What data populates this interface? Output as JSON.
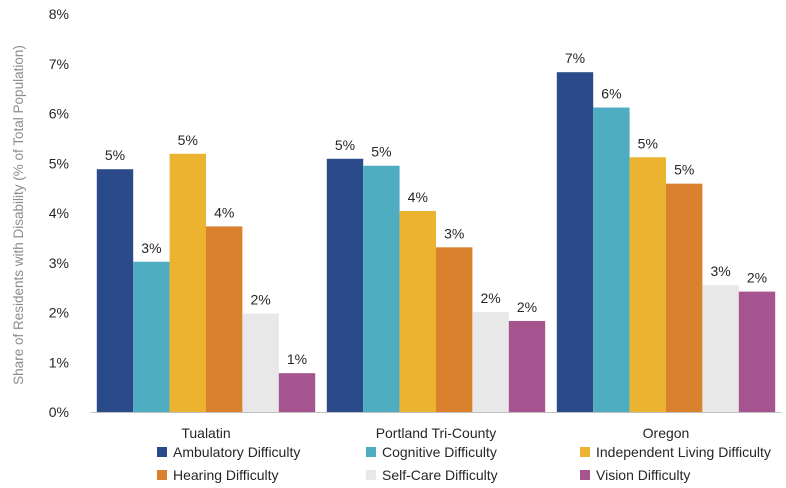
{
  "chart_data": {
    "type": "bar",
    "ylabel": "Share of Residents with Disability (% of Total Population)",
    "ylim": [
      0,
      8
    ],
    "yticks": [
      "0%",
      "1%",
      "2%",
      "3%",
      "4%",
      "5%",
      "6%",
      "7%",
      "8%"
    ],
    "categories": [
      "Tualatin",
      "Portland Tri-County",
      "Oregon"
    ],
    "grid": false,
    "legend_position": "bottom",
    "series": [
      {
        "name": "Ambulatory Difficulty",
        "color": "#2b4a89",
        "values": [
          4.88,
          5.09,
          6.83
        ],
        "labels": [
          "5%",
          "5%",
          "7%"
        ]
      },
      {
        "name": "Cognitive Difficulty",
        "color": "#4fadc1",
        "values": [
          3.02,
          4.95,
          6.12
        ],
        "labels": [
          "3%",
          "5%",
          "6%"
        ]
      },
      {
        "name": "Independent Living Difficulty",
        "color": "#ebb330",
        "values": [
          5.19,
          4.04,
          5.12
        ],
        "labels": [
          "5%",
          "4%",
          "5%"
        ]
      },
      {
        "name": "Hearing Difficulty",
        "color": "#d9812c",
        "values": [
          3.73,
          3.31,
          4.59
        ],
        "labels": [
          "4%",
          "3%",
          "5%"
        ]
      },
      {
        "name": "Self-Care Difficulty",
        "color": "#e8e8e8",
        "values": [
          1.98,
          2.01,
          2.55
        ],
        "labels": [
          "2%",
          "2%",
          "3%"
        ]
      },
      {
        "name": "Vision Difficulty",
        "color": "#a5548f",
        "values": [
          0.78,
          1.83,
          2.42
        ],
        "labels": [
          "1%",
          "2%",
          "2%"
        ]
      }
    ]
  }
}
